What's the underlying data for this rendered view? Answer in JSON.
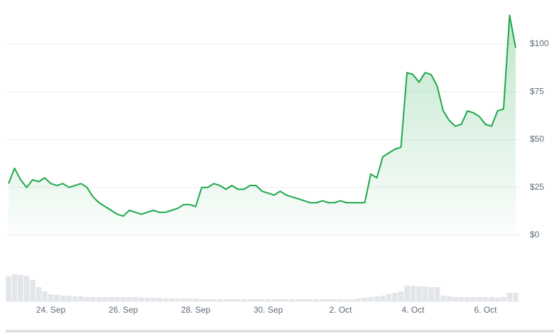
{
  "chart_data": {
    "type": "line",
    "categories": [
      null,
      null,
      null,
      null,
      null,
      null,
      null,
      "24. Sep",
      null,
      null,
      null,
      null,
      null,
      null,
      null,
      null,
      null,
      null,
      null,
      "26. Sep",
      null,
      null,
      null,
      null,
      null,
      null,
      null,
      null,
      null,
      null,
      null,
      "28. Sep",
      null,
      null,
      null,
      null,
      null,
      null,
      null,
      null,
      null,
      null,
      null,
      "30. Sep",
      null,
      null,
      null,
      null,
      null,
      null,
      null,
      null,
      null,
      null,
      null,
      "2. Oct",
      null,
      null,
      null,
      null,
      null,
      null,
      null,
      null,
      null,
      null,
      null,
      "4. Oct",
      null,
      null,
      null,
      null,
      null,
      null,
      null,
      null,
      null,
      null,
      null,
      "6. Oct",
      null,
      null,
      null,
      null,
      null
    ],
    "values": [
      27,
      35,
      29,
      25,
      29,
      28,
      30,
      27,
      26,
      27,
      25,
      26,
      27,
      25,
      20,
      17,
      15,
      13,
      11,
      10,
      13,
      12,
      11,
      12,
      13,
      12,
      12,
      13,
      14,
      16,
      16,
      15,
      25,
      25,
      27,
      26,
      24,
      26,
      24,
      24,
      26,
      26,
      23,
      22,
      21,
      23,
      21,
      20,
      19,
      18,
      17,
      17,
      18,
      17,
      17,
      18,
      17,
      17,
      17,
      17,
      32,
      30,
      41,
      43,
      45,
      46,
      85,
      84,
      80,
      85,
      84,
      78,
      65,
      60,
      57,
      58,
      65,
      64,
      62,
      58,
      57,
      65,
      66,
      115,
      98
    ],
    "color": "#1fa74a",
    "ylim": [
      0,
      120
    ],
    "yticks": [
      {
        "value": 0,
        "label": "$0"
      },
      {
        "value": 25,
        "label": "$25"
      },
      {
        "value": 50,
        "label": "$50"
      },
      {
        "value": 75,
        "label": "$75"
      },
      {
        "value": 100,
        "label": "$100"
      }
    ],
    "grid": true,
    "volume": {
      "values": [
        35,
        38,
        37,
        36,
        30,
        20,
        14,
        10,
        9,
        8,
        8,
        7,
        7,
        6,
        6,
        6,
        6,
        6,
        6,
        6,
        6,
        6,
        5,
        5,
        5,
        5,
        4,
        4,
        4,
        4,
        4,
        4,
        3,
        3,
        3,
        3,
        3,
        3,
        3,
        3,
        3,
        3,
        3,
        3,
        3,
        3,
        3,
        3,
        3,
        3,
        3,
        3,
        3,
        3,
        3,
        3,
        3,
        3,
        4,
        5,
        6,
        7,
        8,
        10,
        12,
        14,
        22,
        22,
        21,
        21,
        20,
        20,
        8,
        7,
        6,
        6,
        6,
        6,
        6,
        6,
        6,
        5,
        6,
        12,
        12
      ],
      "color": "#e2e5e9",
      "ylim": [
        0,
        50
      ]
    }
  }
}
